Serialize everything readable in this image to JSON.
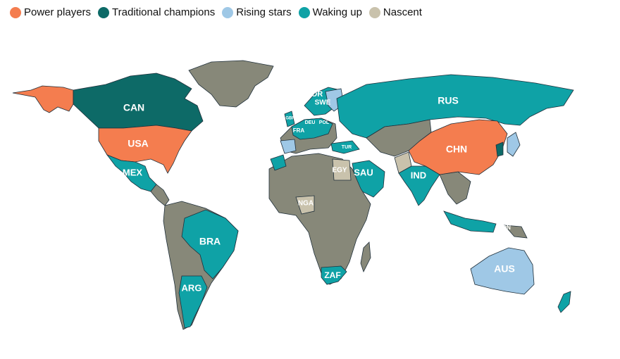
{
  "colors": {
    "power_players": "#f47d4f",
    "traditional_champions": "#0d6a67",
    "rising_stars": "#9fc8e6",
    "waking_up": "#0fa2a6",
    "nascent": "#c9c2ac",
    "unclassified": "#878879"
  },
  "legend": [
    {
      "label": "Power players",
      "color": "#f47d4f"
    },
    {
      "label": "Traditional champions",
      "color": "#0d6a67"
    },
    {
      "label": "Rising stars",
      "color": "#9fc8e6"
    },
    {
      "label": "Waking up",
      "color": "#0fa2a6"
    },
    {
      "label": "Nascent",
      "color": "#c9c2ac"
    }
  ],
  "labels": {
    "can": "CAN",
    "usa": "USA",
    "mex": "MEX",
    "bra": "BRA",
    "arg": "ARG",
    "rus": "RUS",
    "chn": "CHN",
    "ind": "IND",
    "sau": "SAU",
    "egy": "EGY",
    "nga": "NGA",
    "zaf": "ZAF",
    "aus": "AUS",
    "tur": "TUR",
    "fra": "FRA",
    "deu": "DEU",
    "pol": "POL",
    "gbr": "GBR",
    "nor": "NOR",
    "swe": "SWE",
    "idn": "IDN"
  }
}
